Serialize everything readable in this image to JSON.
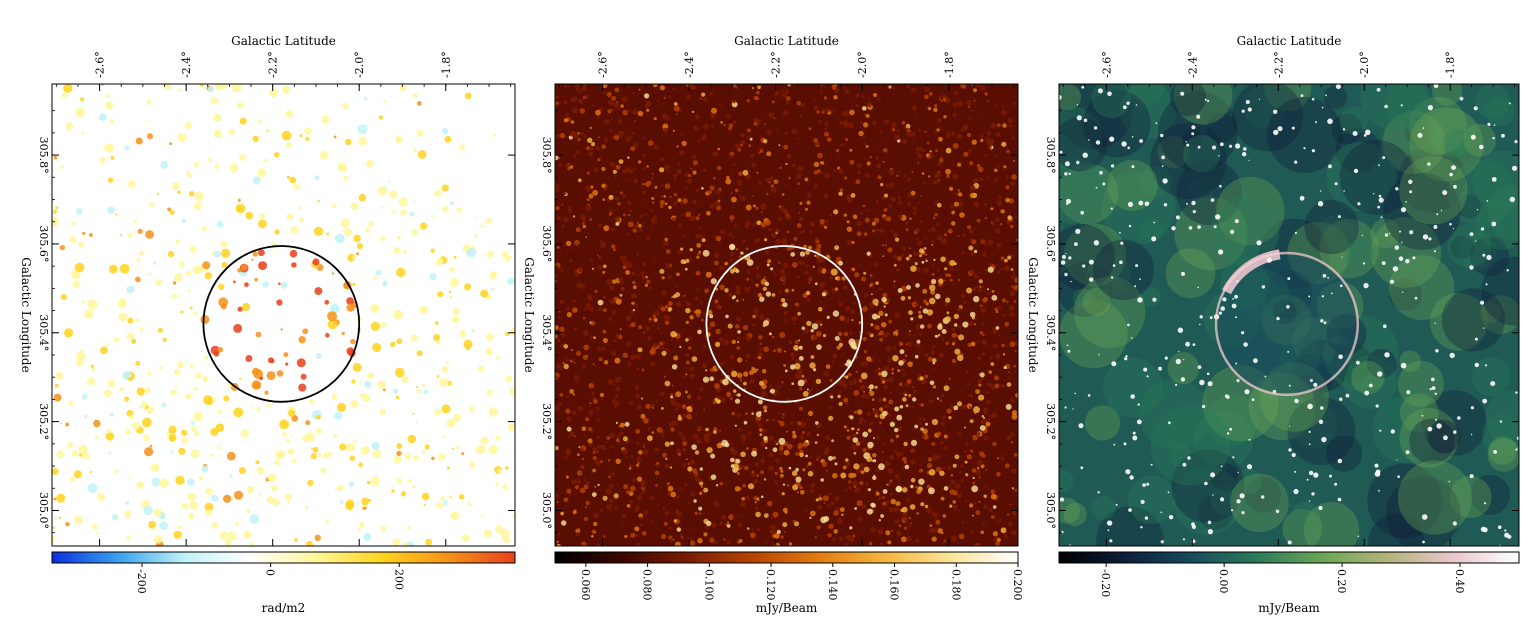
{
  "chart_data": [
    {
      "type": "heatmap",
      "map": "rotation-measure",
      "x_axis_title": "Galactic Latitude",
      "y_axis_title": "Galactic Longitude",
      "x_ticks": [
        {
          "value": -2.6,
          "label": "-2.6°"
        },
        {
          "value": -2.4,
          "label": "-2.4°"
        },
        {
          "value": -2.2,
          "label": "-2.2°"
        },
        {
          "value": -2.0,
          "label": "-2.0°"
        },
        {
          "value": -1.8,
          "label": "-1.8°"
        }
      ],
      "xlim": [
        -2.71,
        -1.64
      ],
      "y_ticks": [
        {
          "value": 305.0,
          "label": "305.0°"
        },
        {
          "value": 305.2,
          "label": "305.2°"
        },
        {
          "value": 305.4,
          "label": "305.4°"
        },
        {
          "value": 305.6,
          "label": "305.6°"
        },
        {
          "value": 305.8,
          "label": "305.8°"
        }
      ],
      "ylim": [
        304.92,
        305.96
      ],
      "colorbar": {
        "label": "rad/m2",
        "range": [
          -340,
          380
        ],
        "ticks": [
          {
            "value": -200,
            "label": "-200"
          },
          {
            "value": 0,
            "label": "0"
          },
          {
            "value": 200,
            "label": "200"
          }
        ],
        "colors": [
          "#0a2fe0",
          "#3aa0f0",
          "#bff2f7",
          "#ffffff",
          "#fff79a",
          "#ffd21c",
          "#f5921a",
          "#e8401c"
        ]
      },
      "ring": {
        "center_lat": -2.18,
        "center_lon": 305.42,
        "radius_deg": 0.18,
        "color": "#000000"
      },
      "background": "#ffffff"
    },
    {
      "type": "heatmap",
      "map": "polarized-intensity",
      "x_axis_title": "Galactic Latitude",
      "y_axis_title": "Galactic Longitude",
      "x_ticks": [
        {
          "value": -2.6,
          "label": "-2.6°"
        },
        {
          "value": -2.4,
          "label": "-2.4°"
        },
        {
          "value": -2.2,
          "label": "-2.2°"
        },
        {
          "value": -2.0,
          "label": "-2.0°"
        },
        {
          "value": -1.8,
          "label": "-1.8°"
        }
      ],
      "xlim": [
        -2.71,
        -1.64
      ],
      "y_ticks": [
        {
          "value": 305.0,
          "label": "305.0°"
        },
        {
          "value": 305.2,
          "label": "305.2°"
        },
        {
          "value": 305.4,
          "label": "305.4°"
        },
        {
          "value": 305.6,
          "label": "305.6°"
        },
        {
          "value": 305.8,
          "label": "305.8°"
        }
      ],
      "ylim": [
        304.92,
        305.96
      ],
      "colorbar": {
        "label": "mJy/Beam",
        "range": [
          0.05,
          0.2
        ],
        "ticks": [
          {
            "value": 0.06,
            "label": "0.060"
          },
          {
            "value": 0.08,
            "label": "0.080"
          },
          {
            "value": 0.1,
            "label": "0.100"
          },
          {
            "value": 0.12,
            "label": "0.120"
          },
          {
            "value": 0.14,
            "label": "0.140"
          },
          {
            "value": 0.16,
            "label": "0.160"
          },
          {
            "value": 0.18,
            "label": "0.180"
          },
          {
            "value": 0.2,
            "label": "0.200"
          }
        ],
        "colors": [
          "#000000",
          "#3a0600",
          "#7a1c00",
          "#b84400",
          "#e37c10",
          "#f6b640",
          "#fbe49a",
          "#ffffff"
        ]
      },
      "ring": {
        "center_lat": -2.18,
        "center_lon": 305.42,
        "radius_deg": 0.18,
        "color": "#ffffff"
      },
      "background": "#5a0e02"
    },
    {
      "type": "heatmap",
      "map": "total-intensity",
      "x_axis_title": "Galactic Latitude",
      "y_axis_title": "Galactic Longitude",
      "x_ticks": [
        {
          "value": -2.6,
          "label": "-2.6°"
        },
        {
          "value": -2.4,
          "label": "-2.4°"
        },
        {
          "value": -2.2,
          "label": "-2.2°"
        },
        {
          "value": -2.0,
          "label": "-2.0°"
        },
        {
          "value": -1.8,
          "label": "-1.8°"
        }
      ],
      "xlim": [
        -2.71,
        -1.64
      ],
      "y_ticks": [
        {
          "value": 305.0,
          "label": "305.0°"
        },
        {
          "value": 305.2,
          "label": "305.2°"
        },
        {
          "value": 305.4,
          "label": "305.4°"
        },
        {
          "value": 305.6,
          "label": "305.6°"
        },
        {
          "value": 305.8,
          "label": "305.8°"
        }
      ],
      "ylim": [
        304.92,
        305.96
      ],
      "colorbar": {
        "label": "mJy/Beam",
        "range": [
          -0.28,
          0.5
        ],
        "ticks": [
          {
            "value": -0.2,
            "label": "-0.20"
          },
          {
            "value": 0.0,
            "label": "0.00"
          },
          {
            "value": 0.2,
            "label": "0.20"
          },
          {
            "value": 0.4,
            "label": "0.40"
          }
        ],
        "colors": [
          "#000000",
          "#0d1e3a",
          "#174a5c",
          "#2c7a5a",
          "#6aa656",
          "#b3b479",
          "#e8c7cc",
          "#ffffff"
        ]
      },
      "ring": {
        "center_lat": -2.18,
        "center_lon": 305.42,
        "radius_deg": 0.165,
        "color": "#ffd2d8"
      },
      "background": "#1f5a55"
    }
  ]
}
